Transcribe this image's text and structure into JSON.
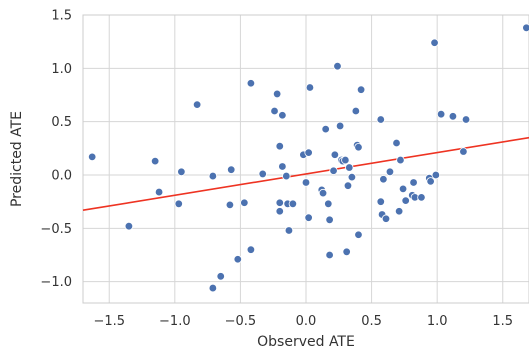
{
  "chart_data": {
    "type": "scatter",
    "title": "",
    "xlabel": "Observed ATE",
    "ylabel": "Predicted ATE",
    "xlim": [
      -1.7,
      1.7
    ],
    "ylim": [
      -1.2,
      1.5
    ],
    "x_ticks": [
      -1.5,
      -1.0,
      -0.5,
      0.0,
      0.5,
      1.0,
      1.5
    ],
    "x_tick_labels": [
      "−1.5",
      "−1.0",
      "−0.5",
      "0.0",
      "0.5",
      "1.0",
      "1.5"
    ],
    "y_ticks": [
      -1.0,
      -0.5,
      0.0,
      0.5,
      1.0,
      1.5
    ],
    "y_tick_labels": [
      "−1.0",
      "−0.5",
      "0.0",
      "0.5",
      "1.0",
      "1.5"
    ],
    "grid": true,
    "point_color": "#4c72b0",
    "line_color": "#ee3322",
    "regression_line": [
      [
        -1.7,
        -0.33
      ],
      [
        1.7,
        0.35
      ]
    ],
    "points": [
      [
        -1.63,
        0.17
      ],
      [
        -1.15,
        0.13
      ],
      [
        -1.12,
        -0.16
      ],
      [
        -0.97,
        -0.27
      ],
      [
        -0.95,
        0.03
      ],
      [
        -0.83,
        0.66
      ],
      [
        -1.35,
        -0.48
      ],
      [
        -0.71,
        -1.06
      ],
      [
        -0.65,
        -0.95
      ],
      [
        -0.52,
        -0.79
      ],
      [
        -0.42,
        -0.7
      ],
      [
        -0.71,
        -0.01
      ],
      [
        -0.57,
        0.05
      ],
      [
        -0.58,
        -0.28
      ],
      [
        -0.47,
        -0.26
      ],
      [
        -0.33,
        0.01
      ],
      [
        -0.42,
        0.86
      ],
      [
        -0.22,
        0.76
      ],
      [
        -0.18,
        0.56
      ],
      [
        -0.24,
        0.6
      ],
      [
        -0.2,
        0.27
      ],
      [
        -0.18,
        0.08
      ],
      [
        -0.2,
        -0.26
      ],
      [
        -0.2,
        -0.34
      ],
      [
        -0.14,
        -0.27
      ],
      [
        -0.13,
        -0.52
      ],
      [
        -0.1,
        -0.27
      ],
      [
        -0.15,
        -0.01
      ],
      [
        -0.02,
        0.19
      ],
      [
        0.02,
        0.21
      ],
      [
        0.03,
        0.82
      ],
      [
        0.0,
        -0.07
      ],
      [
        0.02,
        -0.4
      ],
      [
        0.12,
        -0.14
      ],
      [
        0.13,
        -0.17
      ],
      [
        0.15,
        0.43
      ],
      [
        0.17,
        -0.27
      ],
      [
        0.18,
        -0.42
      ],
      [
        0.18,
        -0.75
      ],
      [
        0.21,
        0.04
      ],
      [
        0.22,
        0.19
      ],
      [
        0.24,
        1.02
      ],
      [
        0.26,
        0.46
      ],
      [
        0.27,
        0.14
      ],
      [
        0.28,
        0.13
      ],
      [
        0.3,
        0.14
      ],
      [
        0.31,
        -0.72
      ],
      [
        0.32,
        -0.1
      ],
      [
        0.33,
        0.07
      ],
      [
        0.35,
        -0.02
      ],
      [
        0.38,
        0.6
      ],
      [
        0.39,
        0.28
      ],
      [
        0.4,
        0.26
      ],
      [
        0.4,
        -0.56
      ],
      [
        0.42,
        0.8
      ],
      [
        0.57,
        0.52
      ],
      [
        0.57,
        -0.25
      ],
      [
        0.58,
        -0.37
      ],
      [
        0.59,
        -0.04
      ],
      [
        0.61,
        -0.41
      ],
      [
        0.64,
        0.03
      ],
      [
        0.69,
        0.3
      ],
      [
        0.71,
        -0.34
      ],
      [
        0.72,
        0.14
      ],
      [
        0.74,
        -0.13
      ],
      [
        0.76,
        -0.24
      ],
      [
        0.81,
        -0.19
      ],
      [
        0.82,
        -0.07
      ],
      [
        0.83,
        -0.21
      ],
      [
        0.88,
        -0.21
      ],
      [
        0.94,
        -0.03
      ],
      [
        0.95,
        -0.06
      ],
      [
        0.99,
        0.0
      ],
      [
        0.98,
        1.24
      ],
      [
        1.03,
        0.57
      ],
      [
        1.12,
        0.55
      ],
      [
        1.2,
        0.22
      ],
      [
        1.22,
        0.52
      ],
      [
        1.68,
        1.38
      ]
    ]
  }
}
